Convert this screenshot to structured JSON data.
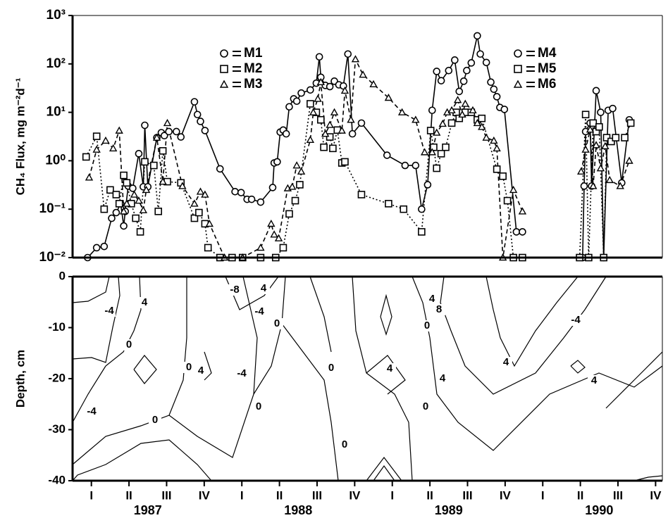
{
  "chart_data": [
    {
      "type": "line",
      "ylabel": "CH₄ Flux, mg m⁻²d⁻¹",
      "xlim": [
        1987,
        1990.92
      ],
      "ylim": [
        0.01,
        1000
      ],
      "log_scale_y": true,
      "yticks": [
        {
          "value": 0.01,
          "label": "10⁻²"
        },
        {
          "value": 0.1,
          "label": "10⁻¹"
        },
        {
          "value": 1,
          "label": "10⁰"
        },
        {
          "value": 10,
          "label": "10¹"
        },
        {
          "value": 100,
          "label": "10²"
        },
        {
          "value": 1000,
          "label": "10³"
        }
      ],
      "series": [
        {
          "name": "M1",
          "color": "#000000",
          "marker": "circle",
          "dash": "solid",
          "x": [
            1987.1,
            1987.16,
            1987.21,
            1987.26,
            1987.29,
            1987.32,
            1987.34,
            1987.35,
            1987.37,
            1987.4,
            1987.44,
            1987.47,
            1987.48,
            1987.5,
            1987.56,
            1987.59,
            1987.61,
            1987.64,
            1987.69,
            1987.72,
            1987.81,
            1987.83,
            1987.85,
            1987.88,
            1987.98,
            1988.08,
            1988.12,
            1988.16,
            1988.19,
            1988.25,
            1988.33,
            1988.34,
            1988.36,
            1988.38,
            1988.4,
            1988.42,
            1988.44,
            1988.47,
            1988.49,
            1988.52,
            1988.58,
            1988.62,
            1988.64,
            1988.65,
            1988.68,
            1988.71,
            1988.74,
            1988.77,
            1988.8,
            1988.83,
            1988.86,
            1988.92,
            1989.09,
            1989.21,
            1989.28,
            1989.32,
            1989.36,
            1989.39,
            1989.42,
            1989.45,
            1989.5,
            1989.54,
            1989.57,
            1989.6,
            1989.62,
            1989.65,
            1989.69,
            1989.71,
            1989.75,
            1989.78,
            1989.8,
            1989.82,
            1989.84,
            1989.87,
            1989.95,
            1989.99
          ],
          "values": [
            0.01,
            0.016,
            0.017,
            0.065,
            0.085,
            0.13,
            0.045,
            0.09,
            0.3,
            0.27,
            1.4,
            0.29,
            5.4,
            0.29,
            3,
            3.8,
            3.3,
            4,
            4,
            3.1,
            16.5,
            9,
            6.5,
            4.2,
            0.68,
            0.23,
            0.22,
            0.16,
            0.16,
            0.14,
            0.28,
            0.9,
            0.95,
            3.9,
            4.3,
            3.6,
            13,
            19,
            17,
            25,
            29,
            40,
            140,
            53,
            36,
            34,
            44,
            37,
            35,
            160,
            3.6,
            6,
            1.3,
            0.8,
            0.8,
            0.1,
            0.32,
            11,
            70,
            45,
            73,
            120,
            27,
            44,
            73,
            105,
            380,
            160,
            107,
            42,
            30,
            21,
            12.6,
            11.5,
            0.034,
            0.034
          ]
        },
        {
          "name": "M2",
          "color": "#000000",
          "marker": "square",
          "dash": "dotted",
          "x": [
            1987.09,
            1987.16,
            1987.21,
            1987.25,
            1987.29,
            1987.31,
            1987.34,
            1987.36,
            1987.39,
            1987.42,
            1987.45,
            1987.48,
            1987.54,
            1987.57,
            1987.6,
            1987.63,
            1987.72,
            1987.81,
            1987.84,
            1987.88,
            1987.9,
            1987.98,
            1988.06,
            1988.13,
            1988.25,
            1988.35,
            1988.4,
            1988.44,
            1988.48,
            1988.51,
            1988.58,
            1988.62,
            1988.65,
            1988.67,
            1988.71,
            1988.73,
            1988.76,
            1988.79,
            1988.81,
            1988.92,
            1989.1,
            1989.2,
            1989.32,
            1989.38,
            1989.4,
            1989.42,
            1989.45,
            1989.48,
            1989.52,
            1989.55,
            1989.57,
            1989.61,
            1989.65,
            1989.69,
            1989.72,
            1989.82,
            1989.86,
            1989.89,
            1989.93,
            1989.99
          ],
          "values": [
            1.2,
            3.2,
            0.1,
            0.25,
            0.2,
            0.13,
            0.5,
            0.35,
            0.13,
            0.065,
            0.034,
            0.95,
            0.8,
            0.09,
            1.6,
            0.37,
            0.35,
            0.065,
            0.085,
            0.05,
            0.016,
            0.01,
            0.01,
            0.01,
            0.01,
            0.01,
            0.016,
            0.08,
            0.15,
            0.32,
            15,
            10,
            7,
            1.9,
            3.1,
            1.8,
            4.3,
            0.9,
            0.95,
            0.2,
            0.13,
            0.1,
            0.034,
            4.2,
            1.9,
            0.7,
            1.4,
            1.9,
            6,
            10,
            7.5,
            10,
            10,
            7,
            7.5,
            0.67,
            0.48,
            0.15,
            0.01,
            0.01
          ]
        },
        {
          "name": "M3",
          "color": "#000000",
          "marker": "triangle",
          "dash": "dashed",
          "x": [
            1987.11,
            1987.16,
            1987.22,
            1987.27,
            1987.31,
            1987.34,
            1987.36,
            1987.41,
            1987.44,
            1987.47,
            1987.49,
            1987.56,
            1987.6,
            1987.63,
            1987.73,
            1987.81,
            1987.85,
            1987.88,
            1987.91,
            1988.01,
            1988.13,
            1988.25,
            1988.32,
            1988.34,
            1988.37,
            1988.43,
            1988.46,
            1988.49,
            1988.52,
            1988.58,
            1988.6,
            1988.63,
            1988.65,
            1988.68,
            1988.71,
            1988.74,
            1988.79,
            1988.81,
            1988.85,
            1988.88,
            1988.93,
            1989.0,
            1989.1,
            1989.19,
            1989.28,
            1989.34,
            1989.39,
            1989.42,
            1989.46,
            1989.49,
            1989.52,
            1989.56,
            1989.59,
            1989.61,
            1989.66,
            1989.69,
            1989.72,
            1989.75,
            1989.8,
            1989.82,
            1989.86,
            1989.93,
            1989.99
          ],
          "values": [
            0.45,
            1.7,
            2.6,
            1.8,
            4.2,
            0.09,
            0.13,
            0.2,
            0.15,
            0.095,
            0.25,
            3,
            0.37,
            6,
            0.3,
            0.13,
            0.23,
            0.2,
            0.05,
            0.01,
            0.01,
            0.016,
            0.05,
            0.03,
            0.025,
            0.27,
            0.29,
            0.8,
            0.6,
            2.7,
            10,
            19,
            42,
            3.6,
            5.5,
            10,
            4.2,
            28,
            7,
            125,
            60,
            38,
            20,
            10,
            7,
            1.5,
            1.5,
            3.8,
            5.8,
            10,
            11,
            18,
            9,
            15,
            11,
            6,
            5,
            3,
            2.6,
            1.8,
            0.01,
            0.25,
            0.09
          ]
        },
        {
          "name": "M4",
          "color": "#000000",
          "marker": "circle",
          "dash": "solid",
          "x": [
            1990.39,
            1990.4,
            1990.41,
            1990.44,
            1990.45,
            1990.48,
            1990.51,
            1990.53,
            1990.56,
            1990.59,
            1990.65,
            1990.7
          ],
          "values": [
            0.01,
            0.3,
            4,
            6,
            0.3,
            28,
            10,
            0.01,
            11,
            12,
            0.35,
            7
          ]
        },
        {
          "name": "M5",
          "color": "#000000",
          "marker": "square",
          "dash": "dotted",
          "x": [
            1990.37,
            1990.41,
            1990.43,
            1990.46,
            1990.48,
            1990.5,
            1990.53,
            1990.55,
            1990.58,
            1990.61,
            1990.67,
            1990.71
          ],
          "values": [
            0.01,
            9,
            0.01,
            6,
            4,
            5,
            0.01,
            3,
            2.5,
            3,
            3,
            6
          ]
        },
        {
          "name": "M6",
          "color": "#000000",
          "marker": "triangle",
          "dash": "dashed",
          "x": [
            1990.38,
            1990.41,
            1990.44,
            1990.46,
            1990.48,
            1990.51,
            1990.54,
            1990.57,
            1990.64,
            1990.7
          ],
          "values": [
            0.6,
            1.7,
            4.4,
            0.3,
            2.1,
            0.7,
            2,
            0.4,
            0.3,
            1
          ]
        }
      ]
    },
    {
      "type": "contour",
      "ylabel": "Depth, cm",
      "xlim": [
        1987,
        1990.92
      ],
      "ylim": [
        -40,
        0
      ],
      "yticks": [
        0,
        -10,
        -20,
        -30,
        -40
      ],
      "xticks": [
        {
          "value": 1987.125,
          "label": "I"
        },
        {
          "value": 1987.375,
          "label": "II"
        },
        {
          "value": 1987.625,
          "label": "III"
        },
        {
          "value": 1987.875,
          "label": "IV"
        },
        {
          "value": 1988.125,
          "label": "I"
        },
        {
          "value": 1988.375,
          "label": "II"
        },
        {
          "value": 1988.625,
          "label": "III"
        },
        {
          "value": 1988.875,
          "label": "IV"
        },
        {
          "value": 1989.125,
          "label": "I"
        },
        {
          "value": 1989.375,
          "label": "II"
        },
        {
          "value": 1989.625,
          "label": "III"
        },
        {
          "value": 1989.875,
          "label": "IV"
        },
        {
          "value": 1990.125,
          "label": "I"
        },
        {
          "value": 1990.375,
          "label": "II"
        },
        {
          "value": 1990.625,
          "label": "III"
        },
        {
          "value": 1990.875,
          "label": "IV"
        }
      ],
      "year_ticks": [
        {
          "value": 1987.5,
          "label": "1987"
        },
        {
          "value": 1988.5,
          "label": "1988"
        },
        {
          "value": 1989.5,
          "label": "1989"
        },
        {
          "value": 1990.5,
          "label": "1990"
        }
      ],
      "contour_labels": [
        -4,
        0,
        4,
        -4,
        0,
        0,
        4,
        -8,
        -4,
        4,
        0,
        -4,
        0,
        0,
        0,
        4,
        0,
        4,
        8,
        0,
        4,
        4,
        -4,
        4
      ]
    }
  ]
}
